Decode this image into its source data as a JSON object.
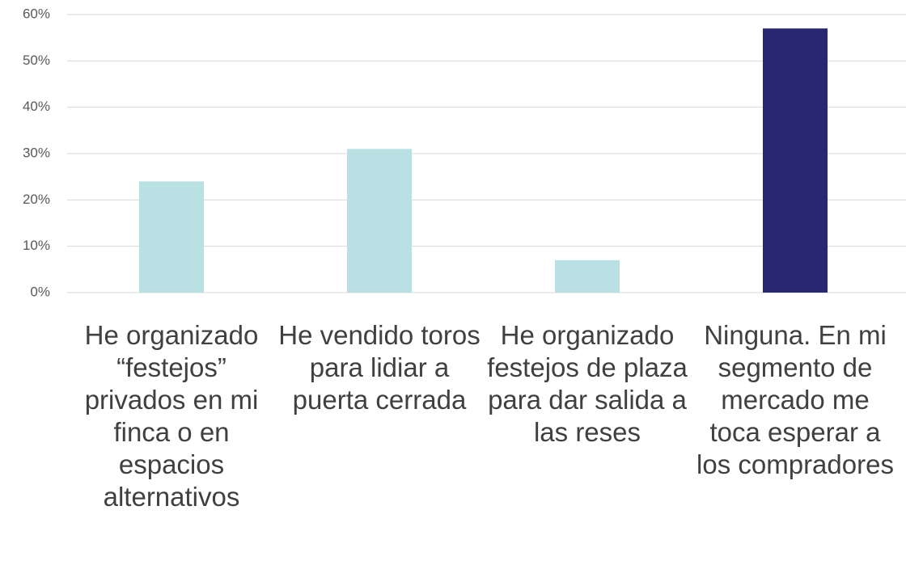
{
  "chart_data": {
    "type": "bar",
    "categories": [
      "He organizado “festejos” privados en mi finca o en espacios alternativos",
      "He vendido toros para lidiar a puerta cerrada",
      "He organizado festejos de plaza para dar salida a las reses",
      "Ninguna. En mi segmento de mercado me toca esperar a los compradores"
    ],
    "values": [
      24,
      31,
      7,
      57
    ],
    "colors": [
      "#b9e1e4",
      "#b9e1e4",
      "#b9e1e4",
      "#282872"
    ],
    "ylim": [
      0,
      60
    ],
    "yticks": [
      {
        "value": 0,
        "label": "0%"
      },
      {
        "value": 10,
        "label": "10%"
      },
      {
        "value": 20,
        "label": "20%"
      },
      {
        "value": 30,
        "label": "30%"
      },
      {
        "value": 40,
        "label": "40%"
      },
      {
        "value": 50,
        "label": "50%"
      },
      {
        "value": 60,
        "label": "60%"
      }
    ],
    "grid": true
  }
}
